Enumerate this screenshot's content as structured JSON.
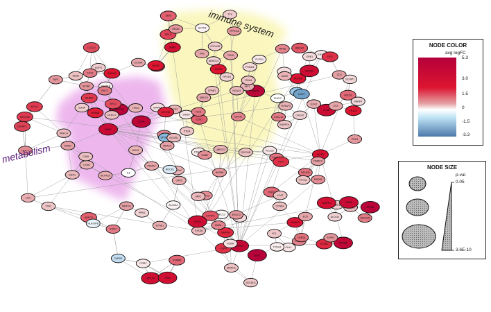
{
  "regions": [
    {
      "label": "immune system",
      "color": "#f6f08a"
    },
    {
      "label": "metabolism",
      "color": "#e07ee0"
    }
  ],
  "legend_color": {
    "title": "NODE COLOR",
    "subtitle": "avg logFC",
    "ticks": [
      "5.3",
      "3.0",
      "1.5",
      "0",
      "-1.5",
      "-3.3"
    ],
    "colors": [
      "#b4003a",
      "#dd1530",
      "#e4a0a4",
      "#bfe3f5",
      "#4b78a8"
    ]
  },
  "legend_size": {
    "title": "NODE SIZE",
    "subtitle": "p-val",
    "top_value": "0.05",
    "bottom_value": "3.6E-10"
  },
  "nodes": [
    {
      "id": "SEC23B",
      "c": 5.1
    },
    {
      "id": "SEC31B",
      "c": 2.6
    },
    {
      "id": "CCT6A",
      "c": 1.4
    },
    {
      "id": "EIF4H",
      "c": 0.3
    },
    {
      "id": "SEC23A",
      "c": 1.9
    },
    {
      "id": "SEC13",
      "c": 0.1
    },
    {
      "id": "SEC24D",
      "c": 1.0
    },
    {
      "id": "SEC24C",
      "c": 1.2
    },
    {
      "id": "SRP1",
      "c": 0.8
    },
    {
      "id": "SEC63",
      "c": 2.1
    },
    {
      "id": "SEC61A",
      "c": 1.3
    },
    {
      "id": "SEC61B",
      "c": 0.2
    },
    {
      "id": "SEC61G",
      "c": 0.9
    },
    {
      "id": "PSMC1",
      "c": 1.1
    },
    {
      "id": "NUP98",
      "c": 1.6
    },
    {
      "id": "RPL3",
      "c": 2.5
    },
    {
      "id": "ERK1",
      "c": 0.6
    },
    {
      "id": "RPS6",
      "c": 1.8
    },
    {
      "id": "NDUFB",
      "c": 2.0
    },
    {
      "id": "CHL1",
      "c": 0.4
    },
    {
      "id": "MRTO4",
      "c": 1.5
    },
    {
      "id": "RPS18",
      "c": 0.7
    },
    {
      "id": "NOP56",
      "c": 3.2
    },
    {
      "id": "HSPD1",
      "c": 4.4
    },
    {
      "id": "HSPA8",
      "c": 2.9
    },
    {
      "id": "RPLP0",
      "c": 3.8
    },
    {
      "id": "RPL7",
      "c": 2.4
    },
    {
      "id": "SNRP",
      "c": 3.5
    },
    {
      "id": "ARPC3",
      "c": 2.2
    },
    {
      "id": "ARPC2",
      "c": 1.7
    },
    {
      "id": "RAB5C",
      "c": 2.6
    },
    {
      "id": "ACTR1B",
      "c": 1.3
    },
    {
      "id": "PSMA7",
      "c": 1.4
    },
    {
      "id": "CPNE1",
      "c": 1.0
    },
    {
      "id": "SF3B1",
      "c": 2.8
    },
    {
      "id": "SF3B3",
      "c": 1.6
    },
    {
      "id": "SNRPD1",
      "c": 0.9
    },
    {
      "id": "LSM4",
      "c": 1.2
    },
    {
      "id": "DCPS",
      "c": 0.8
    },
    {
      "id": "CYFIP1",
      "c": 2.3
    },
    {
      "id": "PDCD6",
      "c": 0.3
    },
    {
      "id": "INTS3",
      "c": 0.5
    },
    {
      "id": "ABHD14",
      "c": 0.7
    },
    {
      "id": "STAT3",
      "c": 1.9
    },
    {
      "id": "STK38",
      "c": 1.1
    },
    {
      "id": "CD274",
      "c": 4.9
    },
    {
      "id": "NFKB1",
      "c": 1.8
    },
    {
      "id": "NFKB2",
      "c": 3.9
    },
    {
      "id": "IL6",
      "c": 0.0
    },
    {
      "id": "IRF1",
      "c": 1.2
    },
    {
      "id": "COPA",
      "c": 2.7
    },
    {
      "id": "COPB",
      "c": 3.1
    },
    {
      "id": "ACTB",
      "c": 3.4
    },
    {
      "id": "PSMB8",
      "c": 4.6
    },
    {
      "id": "PSMB9",
      "c": 2.1
    },
    {
      "id": "TAP1",
      "c": 1.6
    },
    {
      "id": "TAP2",
      "c": 2.2
    },
    {
      "id": "OPTN",
      "c": 3.9
    },
    {
      "id": "CD86",
      "c": 1.0
    },
    {
      "id": "CD40",
      "c": 1.4
    },
    {
      "id": "HLA-E",
      "c": 3.0
    },
    {
      "id": "HLA-F",
      "c": 1.7
    },
    {
      "id": "HLA-DPB",
      "c": -0.3
    },
    {
      "id": "B2M",
      "c": -1.4
    },
    {
      "id": "TAPBP",
      "c": -0.8
    },
    {
      "id": "CD2",
      "c": 1.5
    },
    {
      "id": "FYB",
      "c": 0.6
    },
    {
      "id": "CAPZ",
      "c": 1.3
    },
    {
      "id": "HEXB",
      "c": 1.8
    },
    {
      "id": "HDAC5",
      "c": 1.1
    },
    {
      "id": "GBP1",
      "c": 4.2
    },
    {
      "id": "IDO1",
      "c": 5.2
    },
    {
      "id": "CXCL9",
      "c": 2.4
    },
    {
      "id": "CXCL10",
      "c": 1.9
    },
    {
      "id": "CCR7",
      "c": 1.2
    },
    {
      "id": "ITGA4",
      "c": 1.0
    },
    {
      "id": "ITGB7",
      "c": 0.4
    },
    {
      "id": "S1PR1",
      "c": 1.6
    },
    {
      "id": "PPM1",
      "c": 0.7
    },
    {
      "id": "RAC2",
      "c": 1.9
    },
    {
      "id": "MYLK",
      "c": 2.6
    },
    {
      "id": "LCK",
      "c": 1.3
    },
    {
      "id": "MAPK1",
      "c": 3.6
    },
    {
      "id": "MAPK3",
      "c": 0.5
    },
    {
      "id": "CD3E",
      "c": 1.0
    },
    {
      "id": "SPTBN1",
      "c": -1.7
    },
    {
      "id": "LMO7",
      "c": -2.3
    },
    {
      "id": "VTA1",
      "c": 0.9
    },
    {
      "id": "MED13",
      "c": 1.4
    },
    {
      "id": "THRAP3",
      "c": 1.2
    },
    {
      "id": "TMPO",
      "c": 2.1
    },
    {
      "id": "DAB2",
      "c": 4.1
    },
    {
      "id": "CCDC86",
      "c": 0.8
    },
    {
      "id": "PSMC3",
      "c": 1.5
    },
    {
      "id": "PSMD4",
      "c": 0.6
    },
    {
      "id": "ERCC3",
      "c": 1.6
    },
    {
      "id": "TCEA1",
      "c": 0.3
    },
    {
      "id": "DLEC1",
      "c": 1.0
    },
    {
      "id": "MYO1B",
      "c": 2.9
    },
    {
      "id": "CDC42",
      "c": 1.8
    },
    {
      "id": "PLCG2",
      "c": 0.4
    },
    {
      "id": "VAV1",
      "c": 1.1
    },
    {
      "id": "PIK3CA",
      "c": 2.5
    },
    {
      "id": "PTEN",
      "c": 0.9
    },
    {
      "id": "GAB2",
      "c": 1.7
    },
    {
      "id": "CAMK2",
      "c": 3.3
    },
    {
      "id": "ATP5A",
      "c": 5.0
    },
    {
      "id": "SLC2A1",
      "c": 0.2
    },
    {
      "id": "GAPDH",
      "c": 2.8
    },
    {
      "id": "ENO1",
      "c": 1.1
    },
    {
      "id": "PGK1",
      "c": 1.6
    },
    {
      "id": "LDHA",
      "c": 4.8
    },
    {
      "id": "PKM",
      "c": 3.7
    },
    {
      "id": "TPI1",
      "c": 1.4
    },
    {
      "id": "ALDOA",
      "c": 0.7
    },
    {
      "id": "CDK1",
      "c": 2.2
    },
    {
      "id": "CCNB1",
      "c": 1.0
    },
    {
      "id": "BUB1",
      "c": 1.8
    },
    {
      "id": "AURKA",
      "c": 3.1
    },
    {
      "id": "PLK1",
      "c": 0.5
    },
    {
      "id": "NEK2",
      "c": 1.2
    },
    {
      "id": "TOP2A",
      "c": 2.0
    },
    {
      "id": "MKI67",
      "c": 1.5
    },
    {
      "id": "TTK",
      "c": 0.8
    },
    {
      "id": "KIF11",
      "c": 1.9
    },
    {
      "id": "SUZ12",
      "c": 0.0
    },
    {
      "id": "EZH2",
      "c": 1.3
    },
    {
      "id": "EED",
      "c": 2.7
    },
    {
      "id": "RBBP4",
      "c": 0.6
    },
    {
      "id": "HDAC1",
      "c": 1.5
    },
    {
      "id": "SIN3A",
      "c": 0.4
    },
    {
      "id": "NCOR1",
      "c": 1.1
    },
    {
      "id": "UBE2V2",
      "c": 1.2
    },
    {
      "id": "BRCA2",
      "c": 2.3
    },
    {
      "id": "RAD51",
      "c": 1.7
    },
    {
      "id": "ECD",
      "c": 1.4
    },
    {
      "id": "PTTG1",
      "c": 0.9
    },
    {
      "id": "TOMA",
      "c": 0.5
    },
    {
      "id": "PPP1CA",
      "c": 1.6
    },
    {
      "id": "CALM2",
      "c": 0.7
    },
    {
      "id": "ITYTN1",
      "c": 0.3
    },
    {
      "id": "MDH1",
      "c": 1.2
    },
    {
      "id": "SDHA",
      "c": 0.8
    },
    {
      "id": "LCAT",
      "c": 1.0
    },
    {
      "id": "PDGFB",
      "c": 2.0
    },
    {
      "id": "SYNE1",
      "c": 1.3
    },
    {
      "id": "IQGAP1",
      "c": 2.5
    },
    {
      "id": "PRKCA",
      "c": 1.1
    },
    {
      "id": "SCHIP1",
      "c": 0.6
    },
    {
      "id": "FLNA",
      "c": 4.0
    },
    {
      "id": "TLN1",
      "c": 1.9
    },
    {
      "id": "VCL",
      "c": 0.9
    },
    {
      "id": "ZYX",
      "c": 1.4
    },
    {
      "id": "PXN",
      "c": 2.7
    },
    {
      "id": "ACTN4",
      "c": 0.2
    },
    {
      "id": "RHOA",
      "c": 1.6
    },
    {
      "id": "ROCK1",
      "c": -0.5
    },
    {
      "id": "DIAPH1",
      "c": 1.0
    },
    {
      "id": "MYH9",
      "c": 3.0
    },
    {
      "id": "TPM3",
      "c": 1.2
    }
  ]
}
